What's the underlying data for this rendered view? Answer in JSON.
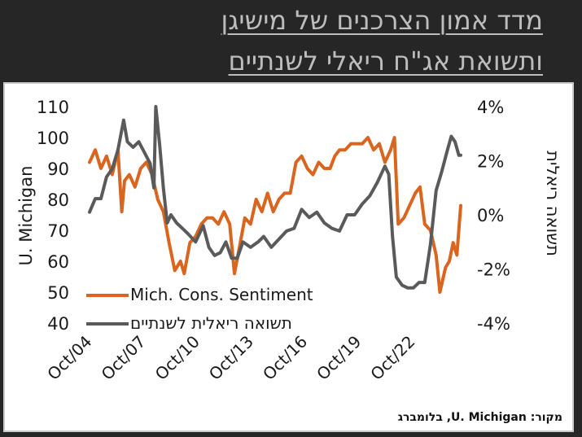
{
  "title_lines": [
    "מדד אמון הצרכנים של מישיגן",
    "ותשואת אג\"ח ריאלי לשנתיים"
  ],
  "source": "מקור: U. Michigan, בלומברג",
  "colors": {
    "sentiment": "#d9651f",
    "yield": "#5a5a5a",
    "background": "#262626",
    "title": "#bdbdbd"
  },
  "chart_data": {
    "type": "line",
    "title": "",
    "xlabel": "",
    "ylabel_left": "U. Michigan",
    "ylabel_right": "תשואה ריאלית",
    "x_ticks": [
      "Oct/04",
      "Oct/07",
      "Oct/10",
      "Oct/13",
      "Oct/16",
      "Oct/19",
      "Oct/22"
    ],
    "x_range": [
      2004.0,
      2023.6
    ],
    "ylim_left": [
      40,
      110
    ],
    "yticks_left": [
      "40",
      "50",
      "60",
      "70",
      "80",
      "90",
      "100",
      "110"
    ],
    "ylim_right": [
      -4,
      4
    ],
    "yticks_right": [
      "-4%",
      "-2%",
      "0%",
      "2%",
      "4%"
    ],
    "legend_position": "bottom-left",
    "series": [
      {
        "name": "Mich. Cons. Sentiment",
        "axis": "left",
        "x": [
          2004.0,
          2004.3,
          2004.6,
          2004.9,
          2005.2,
          2005.5,
          2005.7,
          2005.85,
          2006.1,
          2006.4,
          2006.7,
          2007.0,
          2007.3,
          2007.6,
          2007.9,
          2008.2,
          2008.5,
          2008.8,
          2009.0,
          2009.3,
          2009.6,
          2009.9,
          2010.2,
          2010.5,
          2010.8,
          2011.1,
          2011.4,
          2011.65,
          2011.9,
          2012.2,
          2012.5,
          2012.8,
          2013.1,
          2013.4,
          2013.7,
          2014.0,
          2014.3,
          2014.6,
          2014.9,
          2015.2,
          2015.5,
          2015.8,
          2016.1,
          2016.4,
          2016.7,
          2016.95,
          2017.2,
          2017.5,
          2017.8,
          2018.1,
          2018.4,
          2018.7,
          2019.0,
          2019.3,
          2019.6,
          2019.9,
          2020.1,
          2020.3,
          2020.6,
          2020.9,
          2021.2,
          2021.45,
          2021.7,
          2022.0,
          2022.3,
          2022.5,
          2022.8,
          2023.0,
          2023.2,
          2023.4,
          2023.6
        ],
        "y": [
          92,
          96,
          90,
          94,
          88,
          96,
          76,
          86,
          88,
          84,
          90,
          92,
          88,
          80,
          76,
          66,
          57,
          60,
          56,
          66,
          68,
          72,
          74,
          74,
          72,
          76,
          72,
          56,
          64,
          74,
          72,
          80,
          76,
          82,
          76,
          80,
          82,
          82,
          92,
          94,
          90,
          88,
          92,
          90,
          90,
          94,
          96,
          96,
          98,
          98,
          98,
          100,
          96,
          98,
          92,
          96,
          100,
          72,
          74,
          78,
          82,
          84,
          72,
          70,
          62,
          50,
          58,
          60,
          66,
          62,
          78
        ]
      },
      {
        "name": "תשואה ריאלית לשנתיים",
        "axis": "right",
        "x": [
          2004.0,
          2004.3,
          2004.6,
          2004.9,
          2005.2,
          2005.5,
          2005.8,
          2006.0,
          2006.3,
          2006.6,
          2006.9,
          2007.2,
          2007.4,
          2007.5,
          2007.7,
          2007.9,
          2008.1,
          2008.3,
          2008.6,
          2008.9,
          2009.2,
          2009.6,
          2010.0,
          2010.3,
          2010.6,
          2010.9,
          2011.2,
          2011.5,
          2011.8,
          2012.1,
          2012.5,
          2012.9,
          2013.2,
          2013.6,
          2014.0,
          2014.4,
          2014.8,
          2015.2,
          2015.6,
          2016.0,
          2016.4,
          2016.8,
          2017.2,
          2017.6,
          2018.0,
          2018.4,
          2018.8,
          2019.2,
          2019.6,
          2019.8,
          2020.0,
          2020.2,
          2020.5,
          2020.8,
          2021.1,
          2021.4,
          2021.7,
          2022.0,
          2022.3,
          2022.6,
          2022.9,
          2023.1,
          2023.3,
          2023.5,
          2023.6
        ],
        "y": [
          0.1,
          0.6,
          0.6,
          1.4,
          1.7,
          2.4,
          3.5,
          2.7,
          2.5,
          2.7,
          2.3,
          1.9,
          1.0,
          4.0,
          2.6,
          1.0,
          -0.3,
          0.0,
          -0.3,
          -0.5,
          -0.7,
          -1.0,
          -0.4,
          -1.2,
          -1.5,
          -1.4,
          -1.0,
          -1.6,
          -1.6,
          -1.0,
          -1.2,
          -1.0,
          -0.8,
          -1.2,
          -0.9,
          -0.6,
          -0.5,
          0.2,
          -0.1,
          0.1,
          -0.3,
          -0.5,
          -0.6,
          0.0,
          0.0,
          0.4,
          0.7,
          1.2,
          1.8,
          1.5,
          -0.8,
          -2.3,
          -2.6,
          -2.7,
          -2.7,
          -2.5,
          -2.5,
          -1.1,
          0.9,
          1.6,
          2.4,
          2.9,
          2.7,
          2.2,
          2.2
        ]
      }
    ]
  }
}
